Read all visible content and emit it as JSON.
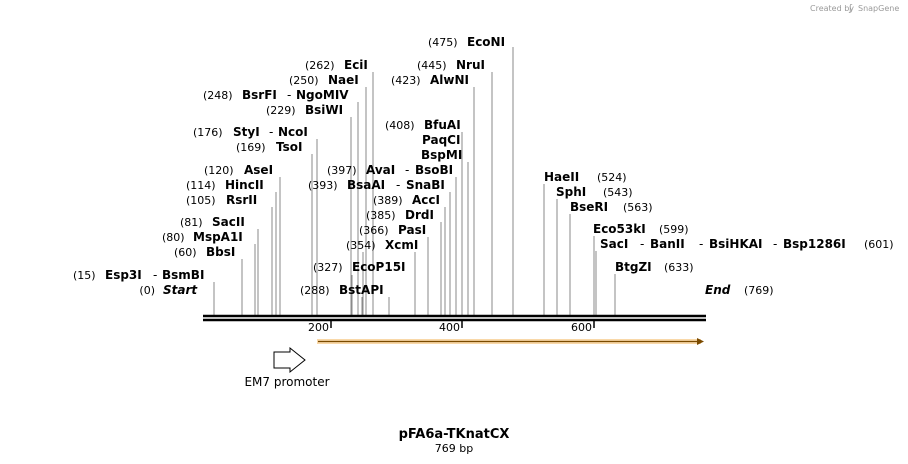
{
  "credit": {
    "prefix": "Created by",
    "brand": "SnapGene"
  },
  "map": {
    "title": "pFA6a-TKnatCX",
    "length_label": "769 bp",
    "start_label": "Start",
    "start_pos": "(0)",
    "end_label": "End",
    "end_pos": "(769)",
    "ticks": [
      "200",
      "400",
      "600"
    ]
  },
  "features": [
    {
      "name": "EM7 promoter"
    }
  ],
  "sites": [
    {
      "pos": "(15)",
      "names": [
        "Esp3I",
        "BsmBI"
      ]
    },
    {
      "pos": "(60)",
      "names": [
        "BbsI"
      ]
    },
    {
      "pos": "(80)",
      "names": [
        "MspA1I"
      ]
    },
    {
      "pos": "(81)",
      "names": [
        "SacII"
      ]
    },
    {
      "pos": "(105)",
      "names": [
        "RsrII"
      ]
    },
    {
      "pos": "(114)",
      "names": [
        "HincII"
      ]
    },
    {
      "pos": "(120)",
      "names": [
        "AseI"
      ]
    },
    {
      "pos": "(169)",
      "names": [
        "TsoI"
      ]
    },
    {
      "pos": "(176)",
      "names": [
        "StyI",
        "NcoI"
      ]
    },
    {
      "pos": "(229)",
      "names": [
        "BsiWI"
      ]
    },
    {
      "pos": "(248)",
      "names": [
        "BsrFI",
        "NgoMIV"
      ]
    },
    {
      "pos": "(250)",
      "names": [
        "NaeI"
      ]
    },
    {
      "pos": "(262)",
      "names": [
        "EciI"
      ]
    },
    {
      "pos": "(288)",
      "names": [
        "BstAPI"
      ]
    },
    {
      "pos": "(327)",
      "names": [
        "EcoP15I"
      ]
    },
    {
      "pos": "(354)",
      "names": [
        "XcmI"
      ]
    },
    {
      "pos": "(366)",
      "names": [
        "PasI"
      ]
    },
    {
      "pos": "(385)",
      "names": [
        "DrdI"
      ]
    },
    {
      "pos": "(389)",
      "names": [
        "AccI"
      ]
    },
    {
      "pos": "(393)",
      "names": [
        "BsaAI",
        "SnaBI"
      ]
    },
    {
      "pos": "(397)",
      "names": [
        "AvaI",
        "BsoBI"
      ]
    },
    {
      "pos": "(408)",
      "names": [
        "BfuAI"
      ]
    },
    {
      "pos": "",
      "names": [
        "PaqCI"
      ]
    },
    {
      "pos": "",
      "names": [
        "BspMI"
      ]
    },
    {
      "pos": "(423)",
      "names": [
        "AlwNI"
      ]
    },
    {
      "pos": "(445)",
      "names": [
        "NruI"
      ]
    },
    {
      "pos": "(475)",
      "names": [
        "EcoNI"
      ]
    },
    {
      "pos": "(524)",
      "names": [
        "HaeII"
      ]
    },
    {
      "pos": "(543)",
      "names": [
        "SphI"
      ]
    },
    {
      "pos": "(563)",
      "names": [
        "BseRI"
      ]
    },
    {
      "pos": "(599)",
      "names": [
        "Eco53kI"
      ]
    },
    {
      "pos": "(601)",
      "names": [
        "SacI",
        "BanII",
        "BsiHKAI",
        "Bsp1286I"
      ]
    },
    {
      "pos": "(633)",
      "names": [
        "BtgZI"
      ]
    }
  ]
}
